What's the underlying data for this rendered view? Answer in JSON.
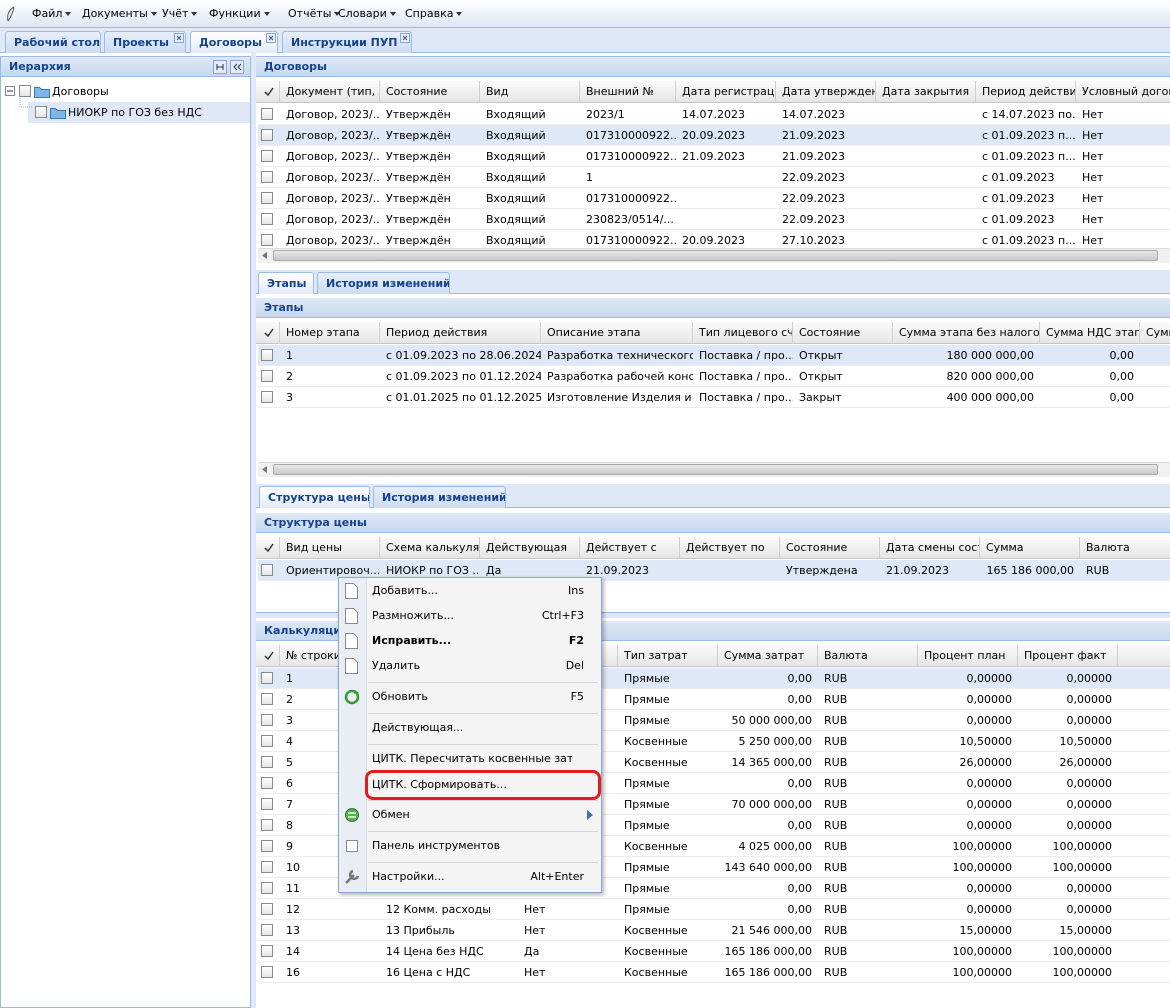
{
  "menu": [
    "Файл",
    "Документы",
    "Учёт",
    "Функции",
    "Отчёты",
    "Словари",
    "Справка"
  ],
  "tabs": [
    {
      "label": "Рабочий стол"
    },
    {
      "label": "Проекты",
      "closable": true
    },
    {
      "label": "Договоры",
      "active": true,
      "closable": true
    },
    {
      "label": "Инструкции ПУП",
      "closable": true
    }
  ],
  "hierarchy": {
    "title": "Иерархия",
    "nodes": [
      {
        "label": "Договоры",
        "level": 0
      },
      {
        "label": "НИОКР по ГОЗ без НДС",
        "level": 1,
        "selected": true
      }
    ]
  },
  "contracts": {
    "title": "Договоры",
    "columns": [
      "Документ (тип, №",
      "Состояние",
      "Вид",
      "Внешний №",
      "Дата регистрации...",
      "Дата утверждения",
      "Дата закрытия",
      "Период действия...",
      "Условный догово..."
    ],
    "rows": [
      [
        "Договор, 2023/...",
        "Утверждён",
        "Входящий",
        "2023/1",
        "14.07.2023",
        "14.07.2023",
        null,
        "с 14.07.2023 по...",
        "Нет"
      ],
      [
        "Договор, 2023/...",
        "Утверждён",
        "Входящий",
        "017310000922...",
        "20.09.2023",
        "21.09.2023",
        null,
        "с 01.09.2023 п...",
        "Нет"
      ],
      [
        "Договор, 2023/...",
        "Утверждён",
        "Входящий",
        "017310000922...",
        "21.09.2023",
        "21.09.2023",
        null,
        "с 01.09.2023 п...",
        "Нет"
      ],
      [
        "Договор, 2023/...",
        "Утверждён",
        "Входящий",
        "1",
        null,
        "22.09.2023",
        null,
        "с 01.09.2023",
        "Нет"
      ],
      [
        "Договор, 2023/...",
        "Утверждён",
        "Входящий",
        "017310000922...",
        null,
        "22.09.2023",
        null,
        "с 01.09.2023",
        "Нет"
      ],
      [
        "Договор, 2023/...",
        "Утверждён",
        "Входящий",
        "230823/0514/...",
        null,
        "22.09.2023",
        null,
        "с 01.09.2023",
        "Нет"
      ],
      [
        "Договор, 2023/...",
        "Утверждён",
        "Входящий",
        "017310000922...",
        "20.09.2023",
        "27.10.2023",
        null,
        "с 01.09.2023 п...",
        "Нет"
      ]
    ],
    "selected_row": 1
  },
  "stage_tabs": [
    {
      "label": "Этапы",
      "active": true
    },
    {
      "label": "История изменений"
    }
  ],
  "stages": {
    "title": "Этапы",
    "columns": [
      "Номер этапа",
      "Период действия",
      "Описание этапа",
      "Тип лицевого счёт",
      "Состояние",
      "Сумма этапа без налогов",
      "Сумма НДС этапа",
      "Сумм"
    ],
    "rows": [
      [
        "1",
        "с 01.09.2023 по 28.06.2024",
        "Разработка технического...",
        "Поставка / про...",
        "Открыт",
        "180 000 000,00",
        "0,00"
      ],
      [
        "2",
        "с 01.09.2023 по 01.12.2024",
        "Разработка рабочей конс...",
        "Поставка / про...",
        "Открыт",
        "820 000 000,00",
        "0,00"
      ],
      [
        "3",
        "с 01.01.2025 по 01.12.2025",
        "Изготовление Изделия и ...",
        "Поставка / про...",
        "Закрыт",
        "400 000 000,00",
        "0,00"
      ]
    ],
    "selected_row": 0
  },
  "price_tabs": [
    {
      "label": "Структура цены",
      "active": true
    },
    {
      "label": "История изменений"
    }
  ],
  "price": {
    "title": "Структура цены",
    "columns": [
      "Вид цены",
      "Схема калькуляци",
      "Действующая",
      "Действует с",
      "Действует по",
      "Состояние",
      "Дата смены состоя",
      "Сумма",
      "Валюта"
    ],
    "rows": [
      [
        "Ориентировоч...",
        "НИОКР по ГОЗ ...",
        "Да",
        "21.09.2023",
        null,
        "Утверждена",
        "21.09.2023",
        "165 186 000,00",
        "RUB"
      ]
    ],
    "selected_row": 0
  },
  "calculation": {
    "title": "Калькуляция",
    "columns": [
      "№ строки",
      null,
      null,
      "Тип затрат",
      "Сумма затрат",
      "Валюта",
      "Процент план",
      "Процент факт"
    ],
    "rows": [
      [
        "1",
        null,
        null,
        "Прямые",
        "0,00",
        "RUB",
        "0,00000",
        "0,00000"
      ],
      [
        "2",
        null,
        null,
        "Прямые",
        "0,00",
        "RUB",
        "0,00000",
        "0,00000"
      ],
      [
        "3",
        null,
        null,
        "Прямые",
        "50 000 000,00",
        "RUB",
        "0,00000",
        "0,00000"
      ],
      [
        "4",
        null,
        null,
        "Косвенные",
        "5 250 000,00",
        "RUB",
        "10,50000",
        "10,50000"
      ],
      [
        "5",
        null,
        null,
        "Косвенные",
        "14 365 000,00",
        "RUB",
        "26,00000",
        "26,00000"
      ],
      [
        "6",
        null,
        null,
        "Прямые",
        "0,00",
        "RUB",
        "0,00000",
        "0,00000"
      ],
      [
        "7",
        null,
        null,
        "Прямые",
        "70 000 000,00",
        "RUB",
        "0,00000",
        "0,00000"
      ],
      [
        "8",
        null,
        null,
        "Прямые",
        "0,00",
        "RUB",
        "0,00000",
        "0,00000"
      ],
      [
        "9",
        null,
        null,
        "Косвенные",
        "4 025 000,00",
        "RUB",
        "100,00000",
        "100,00000"
      ],
      [
        "10",
        null,
        null,
        "Прямые",
        "143 640 000,00",
        "RUB",
        "100,00000",
        "100,00000"
      ],
      [
        "11",
        null,
        null,
        "Прямые",
        "0,00",
        "RUB",
        "0,00000",
        "0,00000"
      ],
      [
        "12",
        "12 Комм. расходы",
        "Нет",
        "Прямые",
        "0,00",
        "RUB",
        "0,00000",
        "0,00000"
      ],
      [
        "13",
        "13 Прибыль",
        "Нет",
        "Косвенные",
        "21 546 000,00",
        "RUB",
        "15,00000",
        "15,00000"
      ],
      [
        "14",
        "14 Цена без НДС",
        "Да",
        "Косвенные",
        "165 186 000,00",
        "RUB",
        "100,00000",
        "100,00000"
      ],
      [
        "16",
        "16 Цена с НДС",
        "Нет",
        "Косвенные",
        "165 186 000,00",
        "RUB",
        "100,00000",
        "100,00000"
      ]
    ],
    "selected_row": 0
  },
  "context_menu": [
    {
      "label": "Добавить...",
      "shortcut": "Ins"
    },
    {
      "label": "Размножить...",
      "shortcut": "Ctrl+F3"
    },
    {
      "label": "Исправить...",
      "shortcut": "F2",
      "bold": true
    },
    {
      "label": "Удалить",
      "shortcut": "Del"
    },
    {
      "label": "Обновить",
      "shortcut": "F5"
    },
    {
      "label": "Действующая..."
    },
    {
      "label": "ЦИТК. Пересчитать косвенные затраты..."
    },
    {
      "label": "ЦИТК. Сформировать...",
      "highlighted": true
    },
    {
      "label": "Обмен",
      "submenu": true
    },
    {
      "label": "Панель инструментов"
    },
    {
      "label": "Настройки...",
      "shortcut": "Alt+Enter"
    }
  ]
}
